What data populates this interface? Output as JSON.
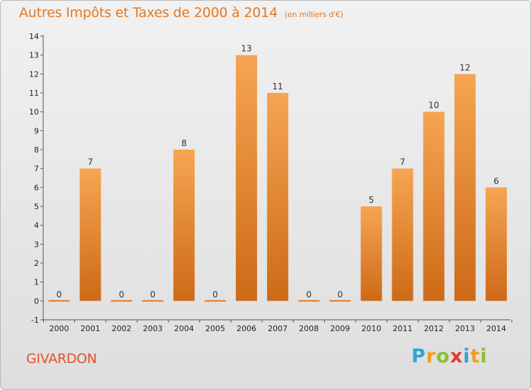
{
  "title": "Autres Impôts et Taxes de 2000 à 2014",
  "unit": "(en milliers d'€)",
  "commune": "GIVARDON",
  "logo": {
    "letters": [
      "P",
      "r",
      "o",
      "x",
      "i",
      "t",
      "i"
    ],
    "colors": [
      "#2aa6d6",
      "#f39c1a",
      "#8dbf2c",
      "#e63a2a",
      "#2aa6d6",
      "#f39c1a",
      "#8dbf2c"
    ]
  },
  "colors": {
    "accent": "#e5781f",
    "commune": "#e4502f",
    "bar_top": "#f6a552",
    "bar_bottom": "#cd6a17"
  },
  "chart_data": {
    "type": "bar",
    "categories": [
      "2000",
      "2001",
      "2002",
      "2003",
      "2004",
      "2005",
      "2006",
      "2007",
      "2008",
      "2009",
      "2010",
      "2011",
      "2012",
      "2013",
      "2014"
    ],
    "values": [
      0,
      7,
      0,
      0,
      8,
      0,
      13,
      11,
      0,
      0,
      5,
      7,
      10,
      12,
      6
    ],
    "data_labels": [
      "0",
      "7",
      "0",
      "0",
      "8",
      "0",
      "13",
      "11",
      "0",
      "0",
      "5",
      "7",
      "10",
      "12",
      "6"
    ],
    "y_ticks": [
      "-1",
      "0",
      "1",
      "2",
      "3",
      "4",
      "5",
      "6",
      "7",
      "8",
      "9",
      "10",
      "11",
      "12",
      "13",
      "14"
    ],
    "ylim": [
      -1,
      14
    ],
    "grid": false
  }
}
